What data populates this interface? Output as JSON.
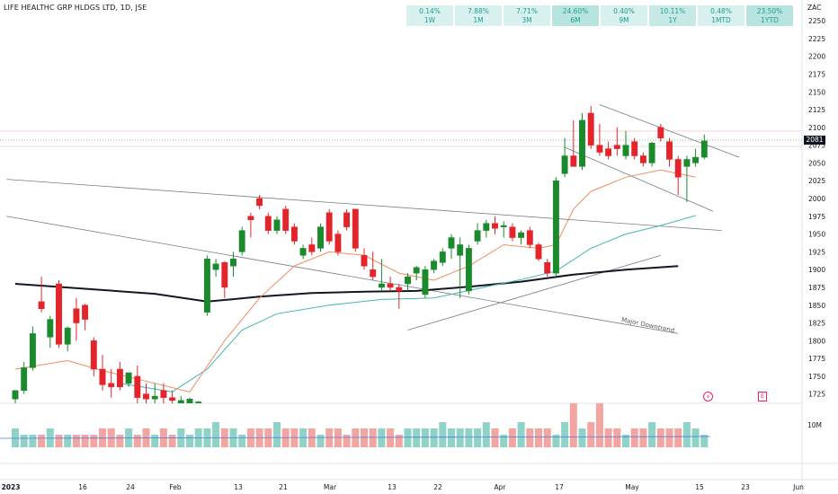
{
  "window": {
    "title": "LIFE HEALTHC GRP HLDGS LTD, 1D, JSE",
    "currency": "ZAC"
  },
  "performance": [
    {
      "value": "0.14%",
      "period": "1W"
    },
    {
      "value": "7.88%",
      "period": "1M"
    },
    {
      "value": "7.71%",
      "period": "3M"
    },
    {
      "value": "24.60%",
      "period": "6M"
    },
    {
      "value": "0.40%",
      "period": "9M"
    },
    {
      "value": "10.11%",
      "period": "1Y"
    },
    {
      "value": "0.48%",
      "period": "1MTD"
    },
    {
      "value": "23.50%",
      "period": "1YTD"
    }
  ],
  "price_axis": {
    "ticks": [
      "2250",
      "2225",
      "2200",
      "2175",
      "2150",
      "2125",
      "2100",
      "2075",
      "2050",
      "2025",
      "2000",
      "1975",
      "1950",
      "1925",
      "1900",
      "1875",
      "1850",
      "1825",
      "1800",
      "1775",
      "1750",
      "1725"
    ],
    "last_price": "2081"
  },
  "time_axis": {
    "ticks": [
      "2023",
      "16",
      "24",
      "Feb",
      "13",
      "21",
      "Mar",
      "13",
      "22",
      "Apr",
      "17",
      "May",
      "15",
      "23",
      "Jun"
    ]
  },
  "annotations": {
    "major_downtrend": "Major Downtrend",
    "flash_icon": "⚡",
    "earnings_icon": "E"
  },
  "volume": {
    "label": "10M"
  },
  "colors": {
    "up": "#26a69a",
    "up_candle": "#1b8a2c",
    "down": "#e3242b",
    "ma_black": "#131722",
    "ma_teal": "#41b8b0",
    "ma_orange": "#f28b63",
    "trendline": "#787b86"
  },
  "chart_data": {
    "type": "candlestick",
    "y_range": [
      1712,
      2264
    ],
    "candles": [
      {
        "o": 1718,
        "h": 1730,
        "l": 1712,
        "c": 1730
      },
      {
        "o": 1730,
        "h": 1770,
        "l": 1725,
        "c": 1762
      },
      {
        "o": 1762,
        "h": 1820,
        "l": 1758,
        "c": 1810
      },
      {
        "o": 1855,
        "h": 1890,
        "l": 1840,
        "c": 1845
      },
      {
        "o": 1805,
        "h": 1835,
        "l": 1790,
        "c": 1830
      },
      {
        "o": 1880,
        "h": 1885,
        "l": 1790,
        "c": 1795
      },
      {
        "o": 1795,
        "h": 1820,
        "l": 1785,
        "c": 1818
      },
      {
        "o": 1845,
        "h": 1860,
        "l": 1800,
        "c": 1825
      },
      {
        "o": 1850,
        "h": 1852,
        "l": 1815,
        "c": 1830
      },
      {
        "o": 1800,
        "h": 1805,
        "l": 1750,
        "c": 1760
      },
      {
        "o": 1760,
        "h": 1780,
        "l": 1730,
        "c": 1738
      },
      {
        "o": 1740,
        "h": 1760,
        "l": 1720,
        "c": 1735
      },
      {
        "o": 1760,
        "h": 1770,
        "l": 1730,
        "c": 1735
      },
      {
        "o": 1740,
        "h": 1755,
        "l": 1735,
        "c": 1755
      },
      {
        "o": 1750,
        "h": 1765,
        "l": 1712,
        "c": 1720
      },
      {
        "o": 1725,
        "h": 1740,
        "l": 1712,
        "c": 1718
      },
      {
        "o": 1718,
        "h": 1740,
        "l": 1712,
        "c": 1722
      },
      {
        "o": 1730,
        "h": 1740,
        "l": 1712,
        "c": 1720
      },
      {
        "o": 1720,
        "h": 1730,
        "l": 1712,
        "c": 1716
      },
      {
        "o": 1712,
        "h": 1722,
        "l": 1712,
        "c": 1716
      },
      {
        "o": 1712,
        "h": 1720,
        "l": 1712,
        "c": 1718
      },
      {
        "o": 1712,
        "h": 1715,
        "l": 1712,
        "c": 1714
      },
      {
        "o": 1840,
        "h": 1920,
        "l": 1835,
        "c": 1915
      },
      {
        "o": 1900,
        "h": 1915,
        "l": 1890,
        "c": 1908
      },
      {
        "o": 1910,
        "h": 1912,
        "l": 1860,
        "c": 1875
      },
      {
        "o": 1905,
        "h": 1925,
        "l": 1890,
        "c": 1915
      },
      {
        "o": 1925,
        "h": 1960,
        "l": 1920,
        "c": 1955
      },
      {
        "o": 1975,
        "h": 1980,
        "l": 1945,
        "c": 1970
      },
      {
        "o": 2000,
        "h": 2005,
        "l": 1985,
        "c": 1990
      },
      {
        "o": 1975,
        "h": 1980,
        "l": 1950,
        "c": 1955
      },
      {
        "o": 1955,
        "h": 1975,
        "l": 1950,
        "c": 1970
      },
      {
        "o": 1985,
        "h": 1990,
        "l": 1950,
        "c": 1955
      },
      {
        "o": 1960,
        "h": 1965,
        "l": 1935,
        "c": 1940
      },
      {
        "o": 1920,
        "h": 1935,
        "l": 1915,
        "c": 1930
      },
      {
        "o": 1935,
        "h": 1945,
        "l": 1920,
        "c": 1925
      },
      {
        "o": 1930,
        "h": 1965,
        "l": 1925,
        "c": 1960
      },
      {
        "o": 1980,
        "h": 1985,
        "l": 1935,
        "c": 1940
      },
      {
        "o": 1950,
        "h": 1955,
        "l": 1920,
        "c": 1925
      },
      {
        "o": 1980,
        "h": 1985,
        "l": 1955,
        "c": 1960
      },
      {
        "o": 1985,
        "h": 1985,
        "l": 1925,
        "c": 1930
      },
      {
        "o": 1920,
        "h": 1930,
        "l": 1900,
        "c": 1905
      },
      {
        "o": 1900,
        "h": 1925,
        "l": 1885,
        "c": 1890
      },
      {
        "o": 1875,
        "h": 1915,
        "l": 1870,
        "c": 1880
      },
      {
        "o": 1880,
        "h": 1890,
        "l": 1870,
        "c": 1875
      },
      {
        "o": 1875,
        "h": 1880,
        "l": 1845,
        "c": 1870
      },
      {
        "o": 1880,
        "h": 1895,
        "l": 1870,
        "c": 1890
      },
      {
        "o": 1895,
        "h": 1905,
        "l": 1885,
        "c": 1903
      },
      {
        "o": 1865,
        "h": 1905,
        "l": 1860,
        "c": 1900
      },
      {
        "o": 1900,
        "h": 1915,
        "l": 1895,
        "c": 1912
      },
      {
        "o": 1910,
        "h": 1930,
        "l": 1905,
        "c": 1925
      },
      {
        "o": 1930,
        "h": 1950,
        "l": 1915,
        "c": 1945
      },
      {
        "o": 1920,
        "h": 1945,
        "l": 1860,
        "c": 1935
      },
      {
        "o": 1870,
        "h": 1935,
        "l": 1865,
        "c": 1930
      },
      {
        "o": 1940,
        "h": 1965,
        "l": 1935,
        "c": 1955
      },
      {
        "o": 1955,
        "h": 1970,
        "l": 1945,
        "c": 1965
      },
      {
        "o": 1965,
        "h": 1975,
        "l": 1950,
        "c": 1958
      },
      {
        "o": 1960,
        "h": 1968,
        "l": 1945,
        "c": 1962
      },
      {
        "o": 1960,
        "h": 1965,
        "l": 1940,
        "c": 1945
      },
      {
        "o": 1945,
        "h": 1955,
        "l": 1935,
        "c": 1952
      },
      {
        "o": 1955,
        "h": 1960,
        "l": 1930,
        "c": 1935
      },
      {
        "o": 1935,
        "h": 1938,
        "l": 1912,
        "c": 1915
      },
      {
        "o": 1910,
        "h": 1915,
        "l": 1890,
        "c": 1895
      },
      {
        "o": 1895,
        "h": 2030,
        "l": 1890,
        "c": 2025
      },
      {
        "o": 2035,
        "h": 2085,
        "l": 2030,
        "c": 2060
      },
      {
        "o": 2060,
        "h": 2110,
        "l": 2050,
        "c": 2045
      },
      {
        "o": 2045,
        "h": 2120,
        "l": 2040,
        "c": 2110
      },
      {
        "o": 2120,
        "h": 2130,
        "l": 2070,
        "c": 2075
      },
      {
        "o": 2075,
        "h": 2105,
        "l": 2060,
        "c": 2065
      },
      {
        "o": 2070,
        "h": 2080,
        "l": 2055,
        "c": 2060
      },
      {
        "o": 2075,
        "h": 2100,
        "l": 2060,
        "c": 2070
      },
      {
        "o": 2060,
        "h": 2095,
        "l": 2055,
        "c": 2075
      },
      {
        "o": 2080,
        "h": 2085,
        "l": 2055,
        "c": 2060
      },
      {
        "o": 2060,
        "h": 2065,
        "l": 2045,
        "c": 2050
      },
      {
        "o": 2050,
        "h": 2080,
        "l": 2045,
        "c": 2078
      },
      {
        "o": 2100,
        "h": 2105,
        "l": 2080,
        "c": 2085
      },
      {
        "o": 2080,
        "h": 2085,
        "l": 2045,
        "c": 2055
      },
      {
        "o": 2055,
        "h": 2060,
        "l": 2005,
        "c": 2030
      },
      {
        "o": 2045,
        "h": 2060,
        "l": 1995,
        "c": 2055
      },
      {
        "o": 2050,
        "h": 2070,
        "l": 2045,
        "c": 2058
      },
      {
        "o": 2058,
        "h": 2090,
        "l": 2055,
        "c": 2081
      }
    ],
    "volume": [
      3,
      2,
      2,
      2,
      3,
      2,
      2,
      2,
      2,
      2,
      3,
      3,
      2,
      3,
      2,
      3,
      2,
      3,
      2,
      3,
      2,
      3,
      3,
      4,
      3,
      3,
      2,
      3,
      3,
      3,
      4,
      3,
      3,
      3,
      3,
      2,
      3,
      3,
      2,
      3,
      3,
      3,
      3,
      3,
      2,
      3,
      3,
      3,
      3,
      4,
      3,
      3,
      3,
      3,
      4,
      3,
      2,
      3,
      4,
      3,
      3,
      3,
      2,
      4,
      7,
      3,
      4,
      7,
      3,
      3,
      2,
      3,
      3,
      4,
      3,
      3,
      3,
      4,
      3,
      2
    ],
    "moving_averages": [
      {
        "name": "",
        "color": "#131722",
        "points": [
          [
            0,
            1880
          ],
          [
            8,
            1873
          ],
          [
            16,
            1866
          ],
          [
            22,
            1855
          ],
          [
            28,
            1862
          ],
          [
            34,
            1867
          ],
          [
            40,
            1869
          ],
          [
            46,
            1870
          ],
          [
            52,
            1876
          ],
          [
            58,
            1883
          ],
          [
            64,
            1893
          ],
          [
            70,
            1900
          ],
          [
            76,
            1905
          ]
        ]
      },
      {
        "name": "",
        "color": "#41b8b0",
        "points": [
          [
            12,
            1740
          ],
          [
            18,
            1728
          ],
          [
            22,
            1760
          ],
          [
            26,
            1815
          ],
          [
            30,
            1838
          ],
          [
            36,
            1850
          ],
          [
            42,
            1858
          ],
          [
            48,
            1860
          ],
          [
            54,
            1876
          ],
          [
            58,
            1886
          ],
          [
            62,
            1898
          ],
          [
            66,
            1930
          ],
          [
            70,
            1950
          ],
          [
            74,
            1962
          ],
          [
            78,
            1976
          ]
        ]
      },
      {
        "name": "",
        "color": "#f28b63",
        "points": [
          [
            0,
            1760
          ],
          [
            6,
            1772
          ],
          [
            10,
            1758
          ],
          [
            16,
            1740
          ],
          [
            20,
            1728
          ],
          [
            24,
            1800
          ],
          [
            28,
            1860
          ],
          [
            32,
            1905
          ],
          [
            36,
            1925
          ],
          [
            40,
            1920
          ],
          [
            44,
            1895
          ],
          [
            48,
            1885
          ],
          [
            52,
            1905
          ],
          [
            56,
            1935
          ],
          [
            60,
            1930
          ],
          [
            62,
            1935
          ],
          [
            64,
            1985
          ],
          [
            66,
            2010
          ],
          [
            70,
            2030
          ],
          [
            74,
            2040
          ],
          [
            78,
            2030
          ]
        ]
      }
    ],
    "trendlines": [
      {
        "label": "",
        "points": [
          [
            -1,
            2027
          ],
          [
            81,
            1955
          ]
        ]
      },
      {
        "label": "",
        "points": [
          [
            -1,
            1975
          ],
          [
            76,
            1810
          ]
        ]
      },
      {
        "label": "",
        "points": [
          [
            67,
            2132
          ],
          [
            83,
            2058
          ]
        ]
      },
      {
        "label": "",
        "points": [
          [
            63,
            2072
          ],
          [
            80,
            1982
          ]
        ]
      },
      {
        "label": "",
        "points": [
          [
            45,
            1815
          ],
          [
            74,
            1920
          ]
        ]
      }
    ]
  }
}
